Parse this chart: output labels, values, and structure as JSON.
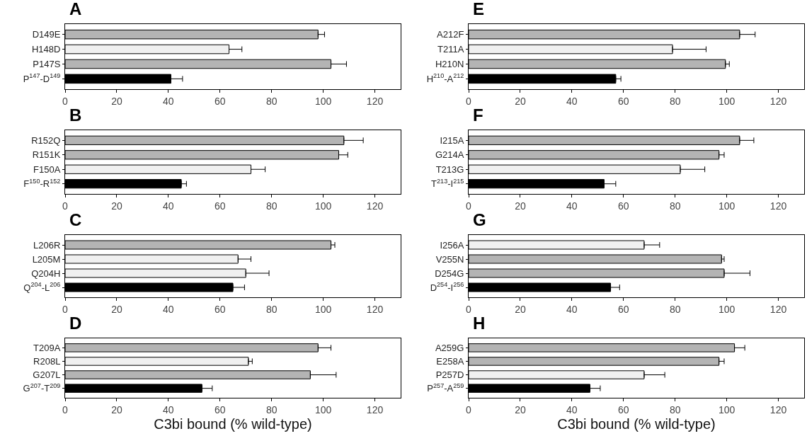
{
  "chart_data": [
    {
      "type": "bar",
      "orientation": "horizontal",
      "title": "A",
      "categories": [
        "D149E",
        "H148D",
        "P147S",
        "P$^{147}$-D$^{149}$"
      ],
      "values": [
        98,
        63.5,
        103,
        41
      ],
      "errors": [
        2.5,
        5,
        6,
        4.5
      ],
      "colors": [
        "#b4b4b4",
        "#f0f0f0",
        "#b4b4b4",
        "#000000"
      ],
      "xlim": [
        0,
        130
      ],
      "xticks": [
        0,
        20,
        40,
        60,
        80,
        100,
        120
      ]
    },
    {
      "type": "bar",
      "orientation": "horizontal",
      "title": "B",
      "categories": [
        "R152Q",
        "R151K",
        "F150A",
        "F$^{150}$-R$^{152}$"
      ],
      "values": [
        108,
        106,
        72,
        45
      ],
      "errors": [
        7.5,
        3.5,
        5.5,
        2
      ],
      "colors": [
        "#b4b4b4",
        "#b4b4b4",
        "#f0f0f0",
        "#000000"
      ],
      "xlim": [
        0,
        130
      ],
      "xticks": [
        0,
        20,
        40,
        60,
        80,
        100,
        120
      ]
    },
    {
      "type": "bar",
      "orientation": "horizontal",
      "title": "C",
      "categories": [
        "L206R",
        "L205M",
        "Q204H",
        "Q$^{204}$-L$^{206}$"
      ],
      "values": [
        103,
        67,
        70,
        65
      ],
      "errors": [
        1.5,
        5,
        9,
        4.5
      ],
      "colors": [
        "#b4b4b4",
        "#f0f0f0",
        "#f0f0f0",
        "#000000"
      ],
      "xlim": [
        0,
        130
      ],
      "xticks": [
        0,
        20,
        40,
        60,
        80,
        100,
        120
      ]
    },
    {
      "type": "bar",
      "orientation": "horizontal",
      "title": "D",
      "xlabel": "C3bi bound (% wild-type)",
      "categories": [
        "T209A",
        "R208L",
        "G207L",
        "G$^{207}$-T$^{209}$"
      ],
      "values": [
        98,
        71,
        95,
        53
      ],
      "errors": [
        5,
        1.5,
        10,
        4
      ],
      "colors": [
        "#b4b4b4",
        "#f0f0f0",
        "#b4b4b4",
        "#000000"
      ],
      "xlim": [
        0,
        130
      ],
      "xticks": [
        0,
        20,
        40,
        60,
        80,
        100,
        120
      ]
    },
    {
      "type": "bar",
      "orientation": "horizontal",
      "title": "E",
      "categories": [
        "A212F",
        "T211A",
        "H210N",
        "H$^{210}$-A$^{212}$"
      ],
      "values": [
        105,
        79,
        99.5,
        57
      ],
      "errors": [
        6,
        13,
        1.5,
        2
      ],
      "colors": [
        "#b4b4b4",
        "#f0f0f0",
        "#b4b4b4",
        "#000000"
      ],
      "xlim": [
        0,
        130
      ],
      "xticks": [
        0,
        20,
        40,
        60,
        80,
        100,
        120
      ]
    },
    {
      "type": "bar",
      "orientation": "horizontal",
      "title": "F",
      "categories": [
        "I215A",
        "G214A",
        "T213G",
        "T$^{213}$-I$^{215}$"
      ],
      "values": [
        105,
        97,
        82,
        52.5
      ],
      "errors": [
        5.5,
        2,
        9.5,
        4.5
      ],
      "colors": [
        "#b4b4b4",
        "#b4b4b4",
        "#f0f0f0",
        "#000000"
      ],
      "xlim": [
        0,
        130
      ],
      "xticks": [
        0,
        20,
        40,
        60,
        80,
        100,
        120
      ]
    },
    {
      "type": "bar",
      "orientation": "horizontal",
      "title": "G",
      "categories": [
        "I256A",
        "V255N",
        "D254G",
        "D$^{254}$-I$^{256}$"
      ],
      "values": [
        68,
        98,
        99,
        55
      ],
      "errors": [
        6,
        1,
        10,
        3.5
      ],
      "colors": [
        "#f0f0f0",
        "#b4b4b4",
        "#b4b4b4",
        "#000000"
      ],
      "xlim": [
        0,
        130
      ],
      "xticks": [
        0,
        20,
        40,
        60,
        80,
        100,
        120
      ]
    },
    {
      "type": "bar",
      "orientation": "horizontal",
      "title": "H",
      "xlabel": "C3bi bound (% wild-type)",
      "categories": [
        "A259G",
        "E258A",
        "P257D",
        "P$^{257}$-A$^{259}$"
      ],
      "values": [
        103,
        97,
        68,
        47
      ],
      "errors": [
        4,
        2,
        8,
        4
      ],
      "colors": [
        "#b4b4b4",
        "#b4b4b4",
        "#f0f0f0",
        "#000000"
      ],
      "xlim": [
        0,
        130
      ],
      "xticks": [
        0,
        20,
        40,
        60,
        80,
        100,
        120
      ]
    }
  ]
}
